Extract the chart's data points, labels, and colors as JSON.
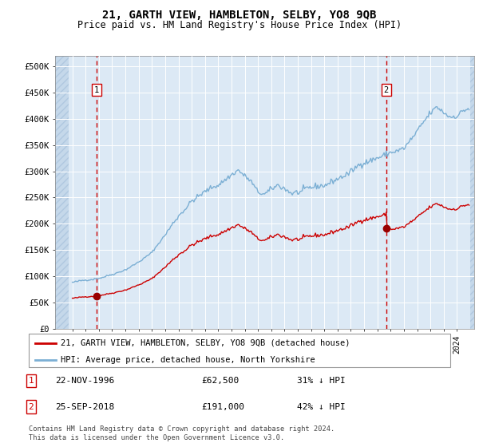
{
  "title": "21, GARTH VIEW, HAMBLETON, SELBY, YO8 9QB",
  "subtitle": "Price paid vs. HM Land Registry's House Price Index (HPI)",
  "ylim": [
    0,
    520000
  ],
  "ytick_labels": [
    "£0",
    "£50K",
    "£100K",
    "£150K",
    "£200K",
    "£250K",
    "£300K",
    "£350K",
    "£400K",
    "£450K",
    "£500K"
  ],
  "bg_color": "#dce9f5",
  "grid_color": "#ffffff",
  "sale1_price": 62500,
  "sale2_price": 191000,
  "red_line_color": "#cc0000",
  "blue_line_color": "#7bafd4",
  "sale_dot_color": "#990000",
  "vline_color": "#cc0000",
  "legend_line1": "21, GARTH VIEW, HAMBLETON, SELBY, YO8 9QB (detached house)",
  "legend_line2": "HPI: Average price, detached house, North Yorkshire",
  "note1_label": "1",
  "note1_date": "22-NOV-1996",
  "note1_price": "£62,500",
  "note1_info": "31% ↓ HPI",
  "note2_label": "2",
  "note2_date": "25-SEP-2018",
  "note2_price": "£191,000",
  "note2_info": "42% ↓ HPI",
  "footer": "Contains HM Land Registry data © Crown copyright and database right 2024.\nThis data is licensed under the Open Government Licence v3.0."
}
